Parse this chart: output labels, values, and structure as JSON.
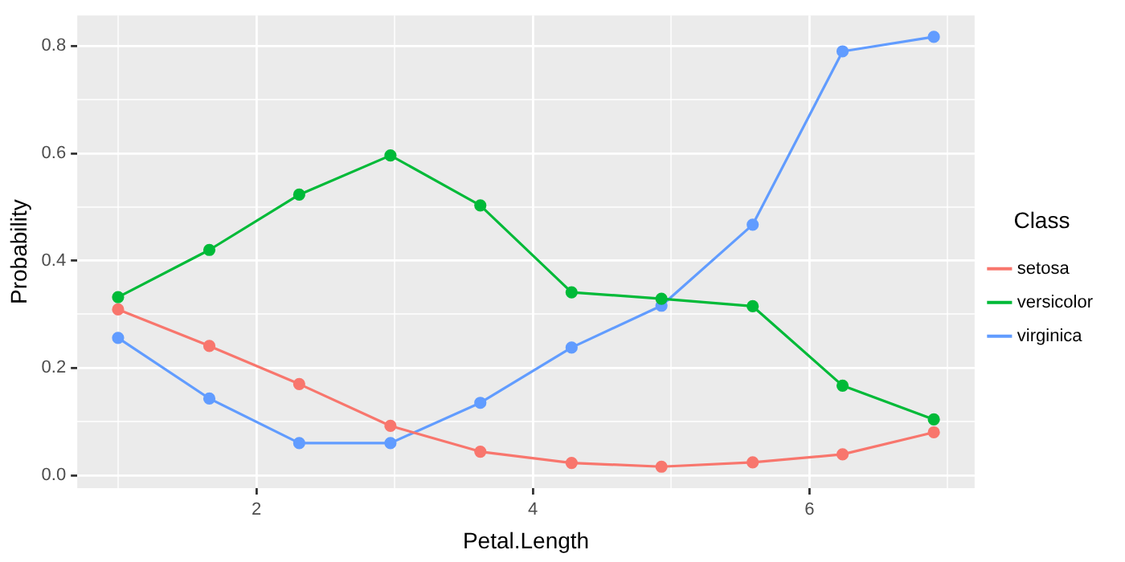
{
  "chart_data": {
    "type": "line",
    "xlabel": "Petal.Length",
    "ylabel": "Probability",
    "legend_title": "Class",
    "legend": "right",
    "grid": true,
    "marker": "circle",
    "line_style": "solid",
    "x": [
      1,
      1.66,
      2.31,
      2.97,
      3.62,
      4.28,
      4.93,
      5.59,
      6.24,
      6.9
    ],
    "xlim": [
      0.705,
      7.195
    ],
    "xticks": [
      {
        "value": 1,
        "label": null
      },
      2,
      {
        "value": 3,
        "label": null
      },
      4,
      {
        "value": 5,
        "label": null
      },
      6,
      {
        "value": 7,
        "label": null
      }
    ],
    "ylim": [
      -0.024,
      0.857
    ],
    "yticks": [
      "0.0",
      {
        "value": 0.1,
        "label": null
      },
      0.2,
      {
        "value": 0.3,
        "label": null
      },
      0.4,
      {
        "value": 0.5,
        "label": null
      },
      0.6,
      {
        "value": 0.7,
        "label": null
      },
      0.8
    ],
    "series": [
      {
        "name": "setosa",
        "color": "#f8766d",
        "values": [
          0.309,
          0.241,
          0.17,
          0.092,
          0.044,
          0.023,
          0.016,
          0.024,
          0.039,
          0.08
        ]
      },
      {
        "name": "versicolor",
        "color": "#00ba38",
        "values": [
          0.332,
          0.42,
          0.523,
          0.596,
          0.503,
          0.341,
          0.329,
          0.315,
          0.167,
          0.104
        ]
      },
      {
        "name": "virginica",
        "color": "#619cff",
        "values": [
          0.256,
          0.143,
          0.06,
          0.06,
          0.135,
          0.238,
          0.316,
          0.467,
          0.79,
          0.817
        ]
      }
    ]
  }
}
